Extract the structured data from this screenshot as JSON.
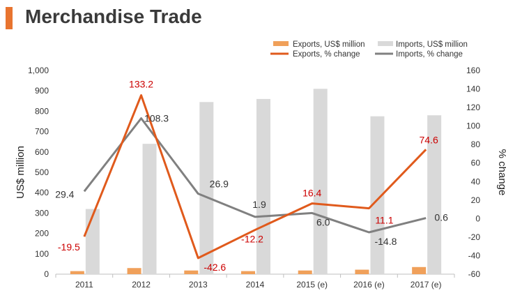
{
  "colors": {
    "exports_bar": "#f0a05a",
    "imports_bar": "#d9d9d9",
    "exports_line": "#e05a1c",
    "imports_line": "#808080",
    "exports_label": "#cc0000",
    "imports_label": "#333333",
    "title_accent": "#e8742f"
  },
  "chart_data": {
    "type": "bar",
    "title": "Merchandise Trade",
    "categories": [
      "2011",
      "2012",
      "2013",
      "2014",
      "2015 (e)",
      "2016 (e)",
      "2017 (e)"
    ],
    "ylabel": "US$ million",
    "y2label": "% change",
    "ylim": [
      0,
      1000
    ],
    "y2lim": [
      -60,
      160
    ],
    "yticks": [
      "0",
      "100",
      "200",
      "300",
      "400",
      "500",
      "600",
      "700",
      "800",
      "900",
      "1,000"
    ],
    "y2ticks": [
      "-60",
      "-40",
      "-20",
      "0",
      "20",
      "40",
      "60",
      "80",
      "100",
      "120",
      "140",
      "160"
    ],
    "legend_position": "top-right",
    "series": [
      {
        "name": "Exports, US$ million",
        "kind": "bar",
        "axis": "left",
        "values": [
          15,
          30,
          18,
          15,
          18,
          22,
          35
        ]
      },
      {
        "name": "Imports, US$ million",
        "kind": "bar",
        "axis": "left",
        "values": [
          320,
          640,
          845,
          860,
          910,
          775,
          780
        ]
      },
      {
        "name": "Exports, % change",
        "kind": "line",
        "axis": "right",
        "values": [
          -19.5,
          133.2,
          -42.6,
          -12.2,
          16.4,
          11.1,
          74.6
        ],
        "labels": [
          "-19.5",
          "133.2",
          "-42.6",
          "-12.2",
          "16.4",
          "11.1",
          "74.6"
        ]
      },
      {
        "name": "Imports, % change",
        "kind": "line",
        "axis": "right",
        "values": [
          29.4,
          108.3,
          26.9,
          1.9,
          6.0,
          -14.8,
          0.6
        ],
        "labels": [
          "29.4",
          "108.3",
          "26.9",
          "1.9",
          "6.0",
          "-14.8",
          "0.6"
        ]
      }
    ]
  }
}
